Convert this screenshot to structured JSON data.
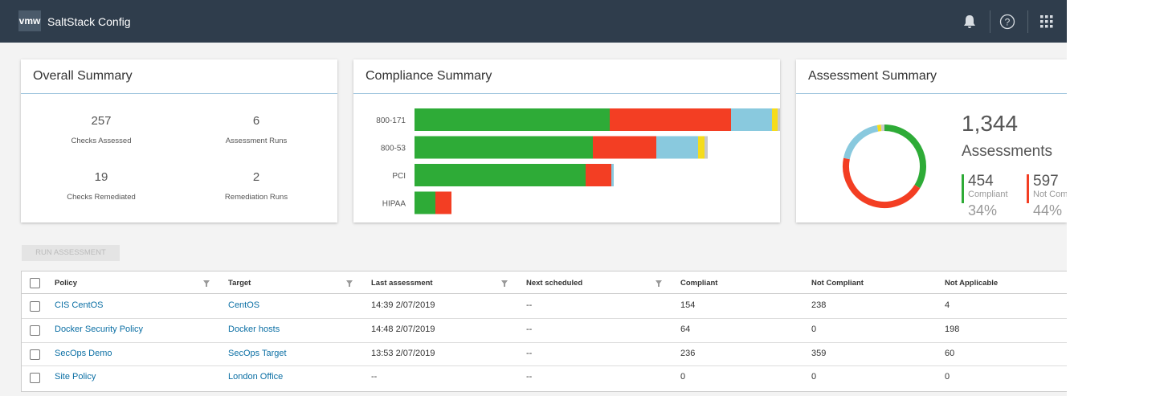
{
  "header": {
    "logo": "vmw",
    "title": "SaltStack Config"
  },
  "overall_summary": {
    "title": "Overall Summary",
    "stats": [
      {
        "value": 257,
        "label": "Checks Assessed"
      },
      {
        "value": 6,
        "label": "Assessment Runs"
      },
      {
        "value": 19,
        "label": "Checks Remediated"
      },
      {
        "value": 2,
        "label": "Remediation Runs"
      }
    ]
  },
  "compliance_summary": {
    "title": "Compliance Summary",
    "chart": {
      "type": "bar",
      "orientation": "horizontal",
      "stacked": true,
      "categories": [
        "800-171",
        "800-53",
        "PCI",
        "HIPAA"
      ],
      "xlim": [
        0,
        455
      ],
      "series": [
        {
          "color": "#2eab37",
          "values": [
            243,
            222,
            213,
            26
          ]
        },
        {
          "color": "#f33e23",
          "values": [
            151,
            79,
            32,
            20
          ]
        },
        {
          "color": "#89c9de",
          "values": [
            51,
            52,
            3,
            0
          ]
        },
        {
          "color": "#f5dc1c",
          "values": [
            7,
            8,
            0,
            0
          ]
        },
        {
          "color": "#c9c9c9",
          "values": [
            3,
            4,
            0,
            0
          ]
        }
      ]
    }
  },
  "assessment_summary": {
    "title": "Assessment Summary",
    "total": "1,344",
    "total_label": "Assessments",
    "chart": {
      "type": "pie",
      "donut": true,
      "values": [
        454,
        597,
        255,
        20,
        18
      ],
      "colors": [
        "#2eab37",
        "#f33e23",
        "#89c9de",
        "#f5dc1c",
        "#c9c9c9"
      ]
    },
    "legend": [
      {
        "label": "Compliant",
        "percent": "34%"
      },
      {
        "label": "Not Compliant",
        "percent": "44%"
      }
    ]
  },
  "run_button": "RUN ASSESSMENT",
  "table": {
    "columns": [
      "Policy",
      "Target",
      "Last assessment",
      "Next scheduled",
      "Compliant",
      "Not Compliant",
      "Not Applicable"
    ],
    "rows": [
      [
        "CIS CentOS",
        "CentOS",
        "14:39 2/07/2019",
        "--",
        154,
        238,
        4
      ],
      [
        "Docker Security Policy",
        "Docker hosts",
        "14:48 2/07/2019",
        "--",
        64,
        0,
        198
      ],
      [
        "SecOps Demo",
        "SecOps Target",
        "13:53 2/07/2019",
        "--",
        236,
        359,
        60
      ],
      [
        "Site Policy",
        "London Office",
        "--",
        "--",
        0,
        0,
        0
      ]
    ]
  }
}
